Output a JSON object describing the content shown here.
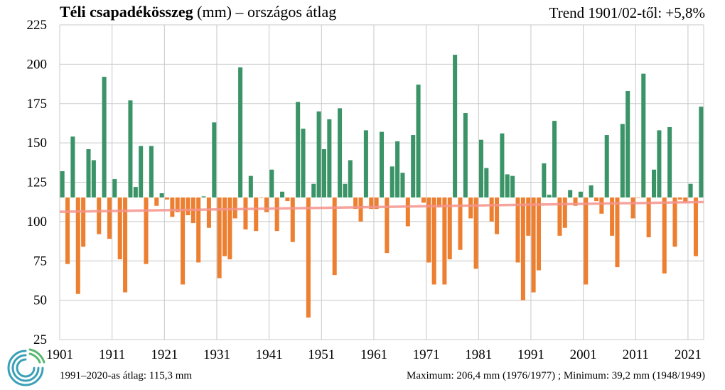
{
  "title": {
    "main": "Téli csapadékösszeg",
    "unit": "(mm)",
    "rest": "– országos átlag"
  },
  "trend_label": "Trend 1901/02-től: +5,8%",
  "footer": {
    "average": "1991–2020-as átlag:  115,3 mm",
    "extremes": "Maximum:  206,4 mm (1976/1977)  ; Minimum:  39,2 mm (1948/1949)"
  },
  "colors": {
    "above": "#3a9467",
    "below": "#ed7f31",
    "trend": "#f5948c",
    "grid": "#c8c8c8"
  },
  "logo": "swirl-logo",
  "chart_data": {
    "type": "bar",
    "baseline": 115.3,
    "ylim": [
      25,
      225
    ],
    "yticks": [
      25,
      50,
      75,
      100,
      125,
      150,
      175,
      200,
      225
    ],
    "xticks": [
      1901,
      1911,
      1921,
      1931,
      1941,
      1951,
      1961,
      1971,
      1981,
      1991,
      2001,
      2011,
      2021
    ],
    "x": [
      1901,
      1902,
      1903,
      1904,
      1905,
      1906,
      1907,
      1908,
      1909,
      1910,
      1911,
      1912,
      1913,
      1914,
      1915,
      1916,
      1917,
      1918,
      1919,
      1920,
      1921,
      1922,
      1923,
      1924,
      1925,
      1926,
      1927,
      1928,
      1929,
      1930,
      1931,
      1932,
      1933,
      1934,
      1935,
      1936,
      1937,
      1938,
      1939,
      1940,
      1941,
      1942,
      1943,
      1944,
      1945,
      1946,
      1947,
      1948,
      1949,
      1950,
      1951,
      1952,
      1953,
      1954,
      1955,
      1956,
      1957,
      1958,
      1959,
      1960,
      1961,
      1962,
      1963,
      1964,
      1965,
      1966,
      1967,
      1968,
      1969,
      1970,
      1971,
      1972,
      1973,
      1974,
      1975,
      1976,
      1977,
      1978,
      1979,
      1980,
      1981,
      1982,
      1983,
      1984,
      1985,
      1986,
      1987,
      1988,
      1989,
      1990,
      1991,
      1992,
      1993,
      1994,
      1995,
      1996,
      1997,
      1998,
      1999,
      2000,
      2001,
      2002,
      2003,
      2004,
      2005,
      2006,
      2007,
      2008,
      2009,
      2010,
      2011,
      2012,
      2013,
      2014,
      2015,
      2016,
      2017,
      2018,
      2019,
      2020,
      2021,
      2022,
      2023
    ],
    "values": [
      132,
      73,
      154,
      54,
      84,
      146,
      139,
      92,
      192,
      89,
      127,
      76,
      55,
      177,
      122,
      148,
      73,
      148,
      110,
      118,
      114,
      103,
      106,
      60,
      104,
      99,
      74,
      116,
      96,
      163,
      64,
      78,
      76,
      102,
      198,
      95,
      129,
      94,
      115,
      106,
      133,
      94,
      119,
      113,
      87,
      176,
      159,
      39,
      124,
      170,
      146,
      165,
      66,
      172,
      124,
      139,
      108,
      100,
      158,
      108,
      108,
      157,
      80,
      135,
      151,
      131,
      97,
      155,
      187,
      112,
      74,
      60,
      109,
      60,
      76,
      206,
      82,
      169,
      102,
      70,
      152,
      134,
      100,
      92,
      156,
      130,
      129,
      74,
      50,
      91,
      55,
      69,
      137,
      117,
      164,
      91,
      96,
      120,
      110,
      119,
      60,
      123,
      113,
      105,
      155,
      91,
      71,
      162,
      183,
      102,
      115,
      194,
      90,
      133,
      158,
      67,
      160,
      84,
      114,
      112,
      124,
      78,
      173
    ],
    "trend": {
      "start": 106.2,
      "end": 112.4,
      "start_year": 1901,
      "end_year": 2023
    }
  }
}
